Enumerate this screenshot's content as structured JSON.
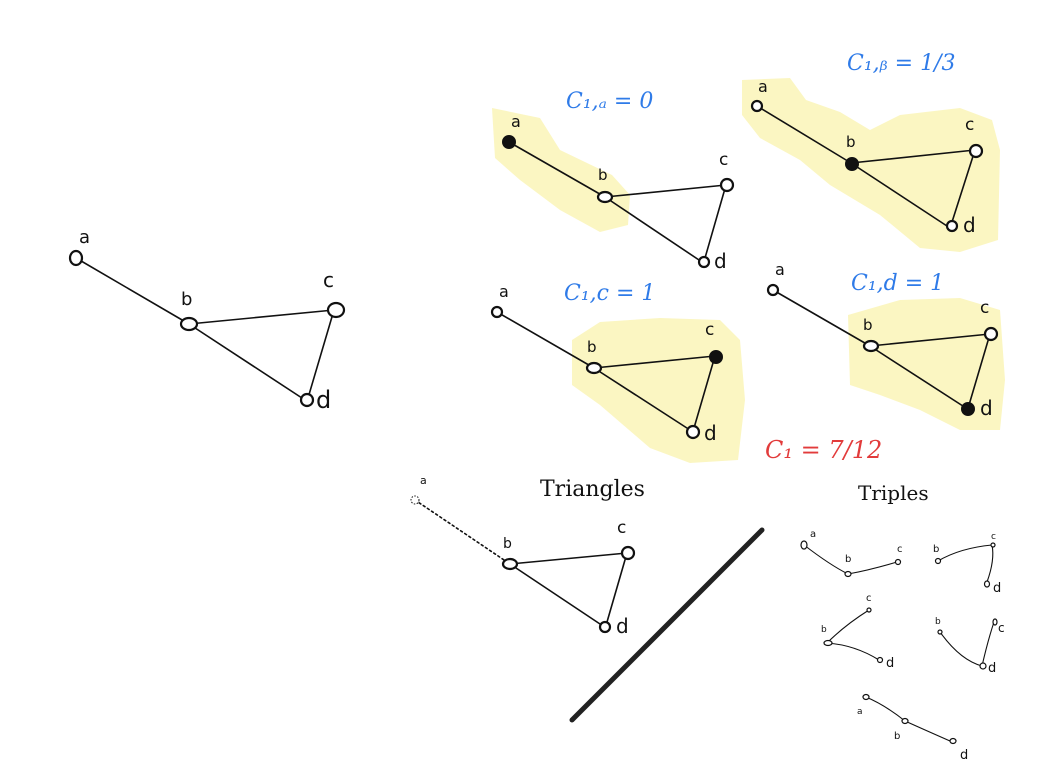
{
  "graph_main": {
    "nodes": [
      "a",
      "b",
      "c",
      "d"
    ]
  },
  "panels": {
    "ca": {
      "title": "C₁,ₐ = 0",
      "nodes": [
        "a",
        "b",
        "c",
        "d"
      ]
    },
    "cb": {
      "title": "C₁,ᵦ = 1/3",
      "nodes": [
        "a",
        "b",
        "c",
        "d"
      ]
    },
    "cc": {
      "title": "C₁,c = 1",
      "nodes": [
        "a",
        "b",
        "c",
        "d"
      ]
    },
    "cd": {
      "title": "C₁,d = 1",
      "nodes": [
        "a",
        "b",
        "c",
        "d"
      ]
    }
  },
  "result": {
    "label": "C₁ = 7/12"
  },
  "triangles": {
    "title": "Triangles",
    "nodes": [
      "a",
      "b",
      "c",
      "d"
    ]
  },
  "triples": {
    "title": "Triples",
    "t1": [
      "a",
      "b",
      "c"
    ],
    "t2": [
      "b",
      "c",
      "d"
    ],
    "t3": [
      "c",
      "b",
      "d"
    ],
    "t4": [
      "b",
      "c",
      "d"
    ],
    "t5": [
      "a",
      "b",
      "d"
    ]
  }
}
